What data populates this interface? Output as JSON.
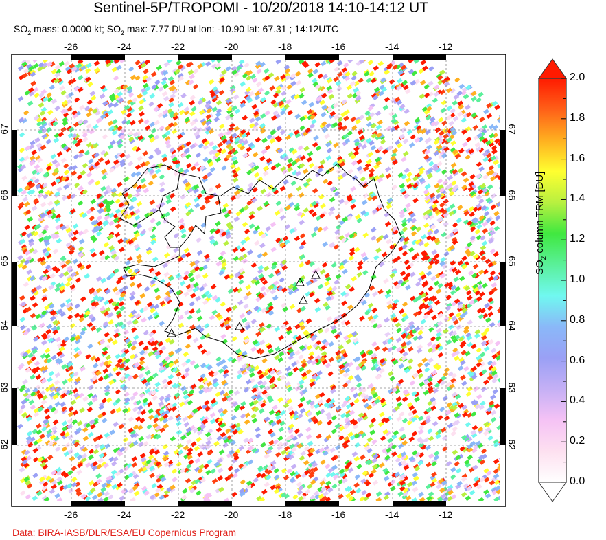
{
  "title": "Sentinel-5P/TROPOMI - 10/20/2018 14:10-14:12 UT",
  "subtitle": {
    "prefix": "SO",
    "sub": "2",
    "text1": " mass: 0.0000 kt; SO",
    "text2": " max: 7.77 DU at lon: -10.90 lat: 67.31 ; 14:12UTC"
  },
  "map": {
    "lon_ticks": [
      "-26",
      "-24",
      "-22",
      "-20",
      "-18",
      "-16",
      "-14",
      "-12"
    ],
    "lat_ticks": [
      "67",
      "66",
      "65",
      "64",
      "63",
      "62"
    ],
    "lon_range": [
      -28,
      -10
    ],
    "lat_range": [
      61.2,
      67.95
    ],
    "volcano_icon": "triangle-icon"
  },
  "colorbar": {
    "label_prefix": "SO",
    "label_sub": "2",
    "label_text": " column TRM [DU]",
    "ticks": [
      "2.0",
      "1.8",
      "1.6",
      "1.4",
      "1.2",
      "1.0",
      "0.8",
      "0.6",
      "0.4",
      "0.2",
      "0.0"
    ],
    "range": [
      0.0,
      2.0
    ],
    "colors": [
      "#ffffff",
      "#fde0f0",
      "#f5c2f5",
      "#c5b0f5",
      "#9aa0f5",
      "#8ab8f8",
      "#70f8f0",
      "#5af09a",
      "#40e840",
      "#b8f040",
      "#ffff30",
      "#ffb020",
      "#ff6018",
      "#ff1a00"
    ]
  },
  "credit": "Data: BIRA-IASB/DLR/ESA/EU Copernicus Program"
}
